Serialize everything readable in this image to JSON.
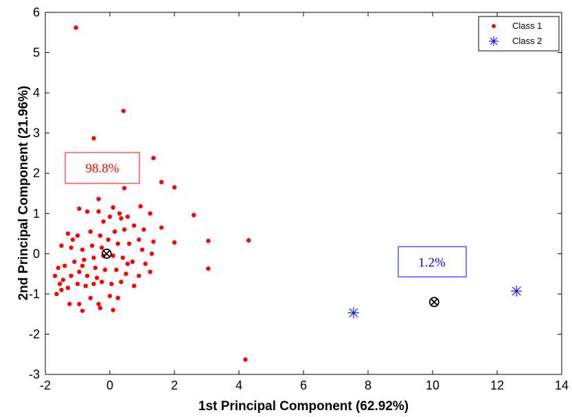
{
  "chart_data": {
    "type": "scatter",
    "title": "",
    "xlabel": "1st Principal Component (62.92%)",
    "ylabel": "2nd Principal Component (21.96%)",
    "xlim": [
      -2,
      14
    ],
    "ylim": [
      -3,
      6
    ],
    "xticks": [
      "-2",
      "0",
      "2",
      "4",
      "6",
      "8",
      "10",
      "12",
      "14"
    ],
    "yticks": [
      "-3",
      "-2",
      "-1",
      "0",
      "1",
      "2",
      "3",
      "4",
      "5",
      "6"
    ],
    "grid": false,
    "legend_position": "top-right",
    "series": [
      {
        "name": "Class 1",
        "marker": "dot",
        "color": "#ff0000",
        "points": [
          [
            -1.05,
            5.62
          ],
          [
            0.42,
            3.55
          ],
          [
            -0.5,
            2.87
          ],
          [
            1.35,
            2.38
          ],
          [
            1.6,
            1.78
          ],
          [
            2.0,
            1.65
          ],
          [
            0.45,
            1.63
          ],
          [
            -0.35,
            1.36
          ],
          [
            0.1,
            1.15
          ],
          [
            -0.95,
            1.12
          ],
          [
            -0.7,
            1.05
          ],
          [
            -0.35,
            1.05
          ],
          [
            0.3,
            1.0
          ],
          [
            2.6,
            0.96
          ],
          [
            0.0,
            0.92
          ],
          [
            0.55,
            0.92
          ],
          [
            0.95,
            1.18
          ],
          [
            1.25,
            1.0
          ],
          [
            -0.2,
            0.8
          ],
          [
            0.35,
            0.88
          ],
          [
            0.75,
            0.7
          ],
          [
            1.05,
            0.6
          ],
          [
            1.6,
            0.65
          ],
          [
            3.05,
            0.32
          ],
          [
            4.3,
            0.33
          ],
          [
            -1.3,
            0.5
          ],
          [
            -1.0,
            0.45
          ],
          [
            -0.6,
            0.55
          ],
          [
            -0.3,
            0.45
          ],
          [
            0.15,
            0.55
          ],
          [
            0.45,
            0.6
          ],
          [
            0.9,
            0.35
          ],
          [
            1.35,
            0.3
          ],
          [
            2.0,
            0.28
          ],
          [
            -1.5,
            0.2
          ],
          [
            -1.2,
            0.15
          ],
          [
            -0.85,
            0.1
          ],
          [
            -0.55,
            0.2
          ],
          [
            -0.25,
            0.15
          ],
          [
            0.25,
            0.25
          ],
          [
            0.6,
            0.25
          ],
          [
            1.0,
            0.1
          ],
          [
            1.3,
            0.0
          ],
          [
            -1.6,
            -0.35
          ],
          [
            -1.4,
            -0.3
          ],
          [
            -1.1,
            -0.2
          ],
          [
            -0.8,
            -0.15
          ],
          [
            -0.5,
            -0.1
          ],
          [
            -0.2,
            -0.05
          ],
          [
            0.1,
            -0.05
          ],
          [
            0.4,
            -0.1
          ],
          [
            0.7,
            -0.2
          ],
          [
            1.1,
            -0.25
          ],
          [
            3.05,
            -0.37
          ],
          [
            -1.7,
            -0.55
          ],
          [
            -1.45,
            -0.65
          ],
          [
            -1.2,
            -0.55
          ],
          [
            -0.95,
            -0.45
          ],
          [
            -0.7,
            -0.55
          ],
          [
            -0.45,
            -0.35
          ],
          [
            -0.15,
            -0.4
          ],
          [
            0.2,
            -0.4
          ],
          [
            0.5,
            -0.5
          ],
          [
            0.9,
            -0.55
          ],
          [
            1.25,
            -0.45
          ],
          [
            -1.5,
            -0.9
          ],
          [
            -1.3,
            -0.85
          ],
          [
            -1.0,
            -0.75
          ],
          [
            -0.75,
            -0.8
          ],
          [
            -0.5,
            -0.75
          ],
          [
            -0.25,
            -0.7
          ],
          [
            0.05,
            -0.75
          ],
          [
            0.35,
            -0.7
          ],
          [
            0.75,
            -0.8
          ],
          [
            -1.65,
            -1.0
          ],
          [
            -1.25,
            -1.25
          ],
          [
            -0.95,
            -1.25
          ],
          [
            -0.6,
            -1.1
          ],
          [
            -0.35,
            -1.25
          ],
          [
            0.0,
            -1.05
          ],
          [
            0.25,
            -1.1
          ],
          [
            -0.85,
            -1.42
          ],
          [
            -0.3,
            -1.35
          ],
          [
            0.1,
            -1.4
          ],
          [
            -1.55,
            -0.75
          ],
          [
            -0.85,
            -0.3
          ],
          [
            -0.4,
            -0.6
          ],
          [
            0.55,
            -0.25
          ],
          [
            -1.15,
            0.35
          ],
          [
            -0.05,
            0.35
          ],
          [
            4.2,
            -2.63
          ]
        ]
      },
      {
        "name": "Class 2",
        "marker": "asterisk",
        "color": "#0000ff",
        "points": [
          [
            7.55,
            -1.47
          ],
          [
            12.6,
            -0.93
          ]
        ]
      }
    ],
    "centroids": [
      [
        -0.1,
        0.0
      ],
      [
        10.05,
        -1.2
      ]
    ],
    "annotations": [
      {
        "text": "98.8%",
        "color": "#ff0000"
      },
      {
        "text": "1.2%",
        "color": "#0000ff"
      }
    ]
  }
}
